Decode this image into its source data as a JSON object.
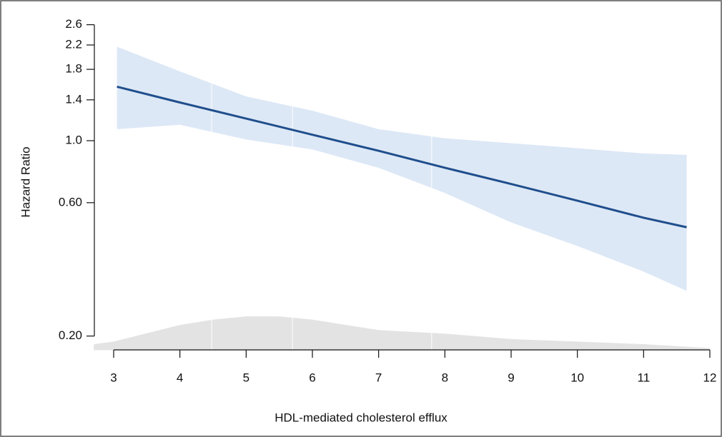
{
  "chart_data": {
    "type": "line",
    "x_label": "HDL-mediated cholesterol efflux",
    "y_label": "Hazard Ratio",
    "xlim": [
      2.7,
      12
    ],
    "xticks": [
      3,
      4,
      5,
      6,
      7,
      8,
      9,
      10,
      11,
      12
    ],
    "ylim": [
      0.178,
      2.8
    ],
    "log_y": true,
    "yticks": [
      {
        "value": 0.2,
        "label": "0.20"
      },
      {
        "value": 0.6,
        "label": "0.60"
      },
      {
        "value": 1,
        "label": "1.0"
      },
      1.4,
      1.8,
      2.2,
      2.6
    ],
    "x": [
      3.05,
      4,
      5,
      6,
      7,
      8,
      9,
      10,
      11,
      11.65
    ],
    "series": [
      {
        "color": "#1f4e8c",
        "values": [
          1.56,
          1.37,
          1.2,
          1.05,
          0.92,
          0.8,
          0.7,
          0.61,
          0.53,
          0.49
        ]
      }
    ],
    "band": {
      "color": "#dde8f6",
      "upper": [
        2.17,
        1.77,
        1.44,
        1.28,
        1.1,
        1.02,
        0.98,
        0.94,
        0.9,
        0.89
      ],
      "lower": [
        1.1,
        1.14,
        1.01,
        0.93,
        0.8,
        0.65,
        0.51,
        0.42,
        0.34,
        0.29
      ]
    },
    "density": {
      "color": "#e3e3e3",
      "x": [
        2.7,
        3,
        4,
        4.5,
        5,
        5.5,
        6,
        7,
        8,
        9,
        10,
        11,
        12
      ],
      "values": [
        0.187,
        0.191,
        0.219,
        0.229,
        0.235,
        0.235,
        0.229,
        0.21,
        0.204,
        0.195,
        0.191,
        0.187,
        0.181
      ]
    },
    "reference_lines": {
      "color": "#ffffff",
      "x": [
        4.48,
        5.7,
        7.8
      ]
    }
  }
}
